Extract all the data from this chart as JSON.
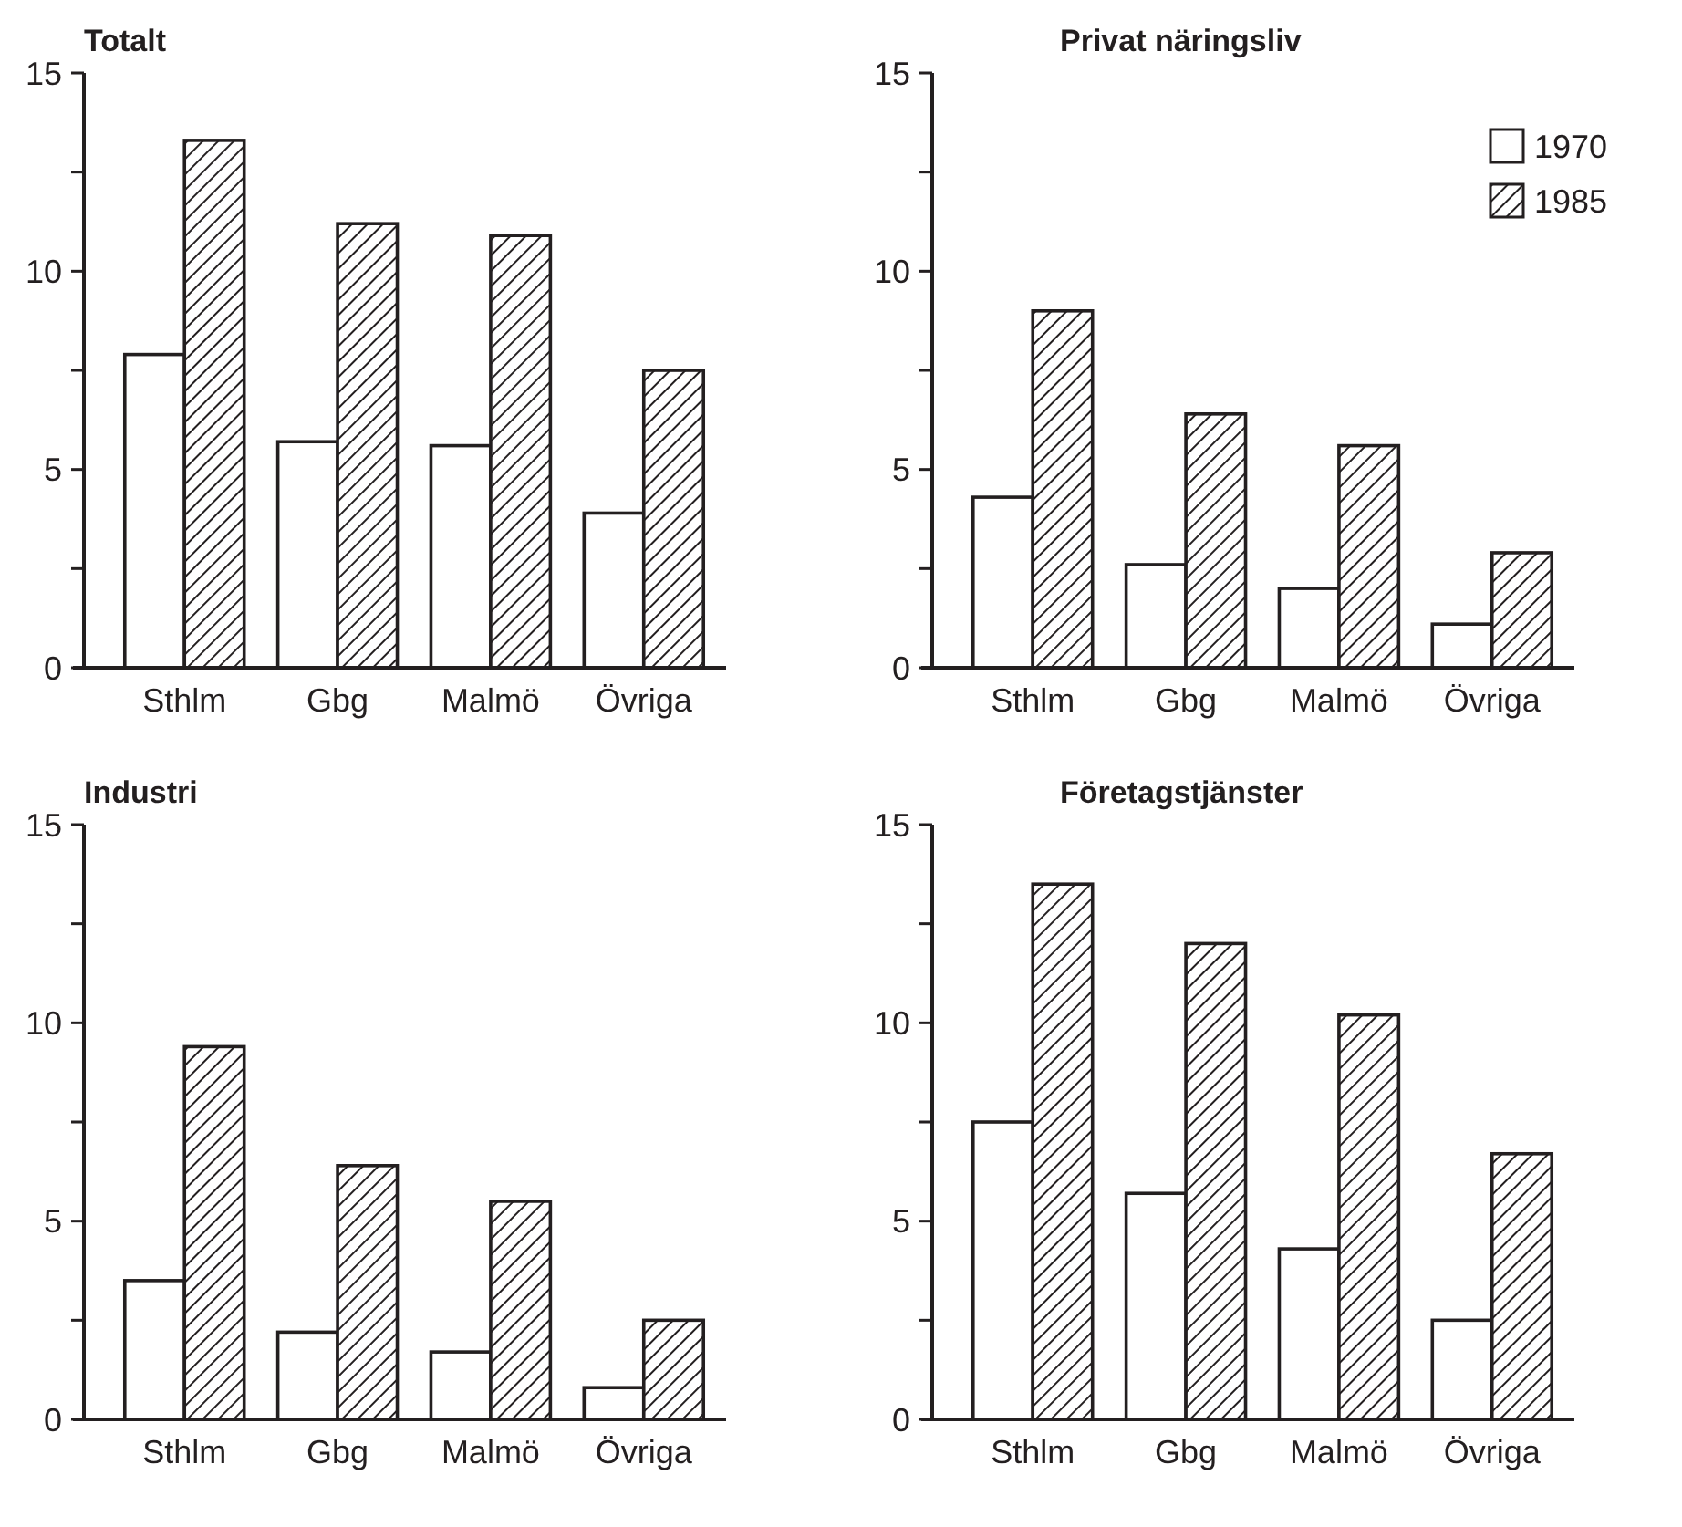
{
  "chart_data": [
    {
      "type": "bar",
      "title": "Totalt",
      "categories": [
        "Sthlm",
        "Gbg",
        "Malmö",
        "Övriga"
      ],
      "series": [
        {
          "color": "#ffffff",
          "values": [
            7.9,
            5.7,
            5.6,
            3.9
          ]
        },
        {
          "color": "#231f20",
          "values": [
            13.3,
            11.2,
            10.9,
            7.5
          ]
        }
      ],
      "ylim": [
        0,
        15
      ],
      "yticks": [
        0,
        {
          "value": 2.5,
          "label": null
        },
        5,
        {
          "value": 7.5,
          "label": null
        },
        10,
        {
          "value": 12.5,
          "label": null
        },
        15
      ],
      "grid": false,
      "legend": false
    },
    {
      "type": "bar",
      "title": "Privat näringsliv",
      "categories": [
        "Sthlm",
        "Gbg",
        "Malmö",
        "Övriga"
      ],
      "series": [
        {
          "name": "1970",
          "color": "#ffffff",
          "values": [
            4.3,
            2.6,
            2.0,
            1.1
          ]
        },
        {
          "name": "1985",
          "color": "#231f20",
          "values": [
            9.0,
            6.4,
            5.6,
            2.9
          ]
        }
      ],
      "ylim": [
        0,
        15
      ],
      "yticks": [
        0,
        {
          "value": 2.5,
          "label": null
        },
        5,
        {
          "value": 7.5,
          "label": null
        },
        10,
        {
          "value": 12.5,
          "label": null
        },
        15
      ],
      "grid": false,
      "legend": "top right"
    },
    {
      "type": "bar",
      "title": "Industri",
      "categories": [
        "Sthlm",
        "Gbg",
        "Malmö",
        "Övriga"
      ],
      "series": [
        {
          "color": "#ffffff",
          "values": [
            3.5,
            2.2,
            1.7,
            0.8
          ]
        },
        {
          "color": "#231f20",
          "values": [
            9.4,
            6.4,
            5.5,
            2.5
          ]
        }
      ],
      "ylim": [
        0,
        15
      ],
      "yticks": [
        0,
        {
          "value": 2.5,
          "label": null
        },
        5,
        {
          "value": 7.5,
          "label": null
        },
        10,
        {
          "value": 12.5,
          "label": null
        },
        15
      ],
      "grid": false,
      "legend": false
    },
    {
      "type": "bar",
      "title": "Företagstjänster",
      "categories": [
        "Sthlm",
        "Gbg",
        "Malmö",
        "Övriga"
      ],
      "series": [
        {
          "color": "#ffffff",
          "values": [
            7.5,
            5.7,
            4.3,
            2.5
          ]
        },
        {
          "color": "#231f20",
          "values": [
            13.5,
            12.0,
            10.2,
            6.7
          ]
        }
      ],
      "ylim": [
        0,
        15
      ],
      "yticks": [
        0,
        {
          "value": 2.5,
          "label": null
        },
        5,
        {
          "value": 7.5,
          "label": null
        },
        10,
        {
          "value": 12.5,
          "label": null
        },
        15
      ],
      "grid": false,
      "legend": false
    }
  ]
}
